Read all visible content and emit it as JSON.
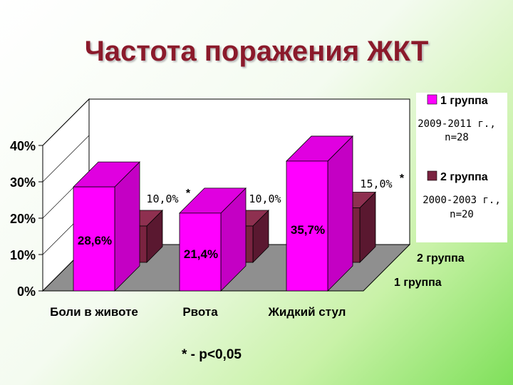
{
  "slide": {
    "title": "Частота поражения ЖКТ",
    "footnote": "* - p<0,05"
  },
  "colors": {
    "group1": "#ff00ff",
    "group1_side": "#c400c4",
    "group1_top": "#e000e0",
    "group2": "#7a2340",
    "group2_side": "#5a1830",
    "group2_top": "#8e3050",
    "back_wall": "#ffffff",
    "floor": "#8f8f8f"
  },
  "chart_data": {
    "type": "bar",
    "title": "",
    "categories": [
      "Боли в животе",
      "Рвота",
      "Жидкий стул"
    ],
    "series": [
      {
        "name": "1 группа",
        "values": [
          28.6,
          21.4,
          35.7
        ],
        "labels": [
          "28,6%",
          "21,4%",
          "35,7%"
        ],
        "legend_sub": "2009-2011 г., n=28"
      },
      {
        "name": "2 группа",
        "values": [
          10.0,
          10.0,
          15.0
        ],
        "labels": [
          "10,0%",
          "10,0%",
          "15,0%"
        ],
        "legend_sub": "2000-2003 г., n=20"
      }
    ],
    "significance_marks": [
      "*",
      "",
      "*"
    ],
    "yticks": [
      "0%",
      "10%",
      "20%",
      "30%",
      "40%"
    ],
    "ylim": [
      0,
      40
    ],
    "depth_axis_labels": [
      "2 группа",
      "1 группа"
    ],
    "legend_position": "right",
    "grid": false
  }
}
